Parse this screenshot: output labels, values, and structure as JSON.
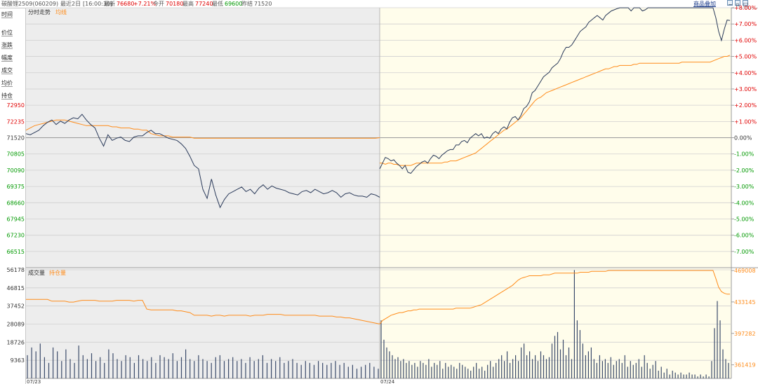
{
  "header": {
    "instrument": "碳酸锂2509(060209)",
    "period": "最近2日",
    "time": "[16:00:30]",
    "last_label": "最新",
    "last_value": "76680",
    "change_pct": "+7.21%",
    "open_label": "今开",
    "open_value": "70180",
    "high_label": "最高",
    "high_value": "77240",
    "low_label": "最低",
    "low_value": "69600",
    "prev_label": "昨结",
    "prev_value": "71520",
    "add_product": "商品叠加"
  },
  "nav": {
    "items": [
      "时间",
      "价位",
      "涨跌",
      "幅度",
      "成交",
      "均价",
      "持仓"
    ]
  },
  "price_panel": {
    "title": "分时走势",
    "legend_avg": "均线",
    "left_ticks": [
      "72950",
      "72235",
      "71520",
      "70805",
      "70090",
      "69375",
      "68660",
      "67945",
      "67230",
      "66515"
    ],
    "right_ticks": [
      "+8.00%",
      "+7.00%",
      "+6.00%",
      "+5.00%",
      "+4.00%",
      "+3.00%",
      "+2.00%",
      "+1.00%",
      "0.00%",
      "-1.00%",
      "-2.00%",
      "-3.00%",
      "-4.00%",
      "-5.00%",
      "-6.00%",
      "-7.00%"
    ]
  },
  "volume_panel": {
    "title": "成交量",
    "legend_oi": "持仓量",
    "left_ticks": [
      "56178",
      "46815",
      "37452",
      "28089",
      "18726",
      "9363"
    ],
    "right_ticks": [
      "469008",
      "433145",
      "397282",
      "361419"
    ]
  },
  "x_labels": [
    "07/23",
    "07/24"
  ],
  "colors": {
    "price_line": "#2a3a5a",
    "avg_line": "#ff8c1a",
    "volume_bar": "#3a4a6a",
    "oi_line": "#ff8c1a",
    "up": "#e00000",
    "down": "#009900",
    "day1_bg": "#ededed",
    "day2_bg": "#fffdeb"
  },
  "chart_data": {
    "type": "line",
    "price_scale": {
      "prev_settle": 71520,
      "ylim": [
        65800,
        77242
      ]
    },
    "day1": {
      "price": [
        71700,
        71650,
        71750,
        71850,
        72050,
        72200,
        72300,
        72100,
        72250,
        72150,
        72300,
        72400,
        72350,
        72550,
        72300,
        72100,
        71950,
        71500,
        71150,
        71650,
        71400,
        71500,
        71550,
        71400,
        71350,
        71550,
        71600,
        71600,
        71750,
        71850,
        71700,
        71700,
        71600,
        71500,
        71450,
        71400,
        71250,
        71050,
        70700,
        70300,
        70150,
        69250,
        68850,
        69700,
        69000,
        68450,
        68800,
        69050,
        69150,
        69250,
        69350,
        69150,
        69250,
        69050,
        69300,
        69450,
        69250,
        69400,
        69300,
        69250,
        69200,
        69100,
        69050,
        69000,
        69150,
        69200,
        69100,
        69250,
        69150,
        69050,
        69100,
        69200,
        69100,
        68900,
        69050,
        69100,
        69000,
        68950,
        68950,
        68900,
        69050,
        69000,
        68900
      ],
      "avg": [
        71850,
        71950,
        72050,
        72100,
        72150,
        72200,
        72250,
        72300,
        72300,
        72300,
        72250,
        72200,
        72150,
        72100,
        72050,
        72050,
        72050,
        72050,
        72050,
        72050,
        72000,
        72000,
        71950,
        71950,
        71950,
        71900,
        71900,
        71850,
        71850,
        71700,
        71650,
        71600,
        71600,
        71600,
        71550,
        71550,
        71550,
        71550,
        71550,
        71500,
        71500,
        71500,
        71500,
        71500,
        71500,
        71500,
        71500,
        71500,
        71500,
        71500,
        71500,
        71500,
        71500,
        71500,
        71500,
        71500,
        71500,
        71500,
        71500,
        71500,
        71500,
        71500,
        71500,
        71500,
        71500,
        71500,
        71500,
        71500,
        71500,
        71500,
        71500,
        71500,
        71500,
        71500,
        71500,
        71500,
        71500,
        71500,
        71500,
        71500,
        71500,
        71500,
        71520
      ],
      "volume": [
        12000,
        16000,
        14000,
        18000,
        11000,
        8000,
        16000,
        14000,
        9000,
        15000,
        10000,
        8000,
        17000,
        12000,
        10000,
        13000,
        9000,
        11000,
        8000,
        15000,
        13000,
        10000,
        9000,
        12000,
        11000,
        8000,
        12000,
        10000,
        9000,
        11000,
        8000,
        12000,
        11000,
        10000,
        13000,
        9000,
        11000,
        15000,
        10000,
        9000,
        12000,
        10000,
        9000,
        8000,
        11000,
        12000,
        9000,
        10000,
        11000,
        9000,
        10000,
        8000,
        11000,
        9000,
        10000,
        12000,
        8000,
        10000,
        9000,
        11000,
        8000,
        9000,
        10000,
        8000,
        7000,
        9000,
        8000,
        7000,
        9000,
        8000,
        7000,
        8000,
        9000,
        7000,
        8000,
        6000,
        7000,
        5000,
        6000,
        7000,
        8000,
        6000,
        5000
      ],
      "open_interest": [
        436000,
        436000,
        436000,
        436000,
        436000,
        436000,
        434000,
        434000,
        434000,
        434000,
        433000,
        433000,
        434000,
        435000,
        435000,
        435000,
        435000,
        434000,
        434000,
        434000,
        434000,
        435000,
        435000,
        435000,
        435000,
        434000,
        435000,
        435000,
        425000,
        424000,
        424000,
        424000,
        424000,
        424000,
        424000,
        423000,
        423000,
        422000,
        421000,
        418000,
        418000,
        418000,
        418000,
        417000,
        418000,
        418000,
        417000,
        418000,
        418000,
        418000,
        418000,
        418000,
        417000,
        418000,
        418000,
        418000,
        419000,
        419000,
        419000,
        419000,
        418000,
        418000,
        418000,
        418000,
        418000,
        418000,
        418000,
        418000,
        417000,
        417000,
        417000,
        417000,
        416000,
        416000,
        415000,
        415000,
        414000,
        413000,
        412000,
        411000,
        410000,
        409000,
        408000
      ]
    },
    "day2": {
      "price": [
        70150,
        70400,
        70650,
        70600,
        70500,
        70550,
        70400,
        70300,
        70150,
        70300,
        70000,
        69950,
        70100,
        70250,
        70350,
        70450,
        70500,
        70400,
        70600,
        70750,
        70700,
        70600,
        70750,
        70850,
        70950,
        71000,
        71000,
        71200,
        71200,
        71350,
        71400,
        71300,
        71500,
        71600,
        71700,
        71600,
        71700,
        71500,
        71550,
        71500,
        71700,
        71800,
        71700,
        71900,
        72000,
        71900,
        72200,
        72400,
        72450,
        72300,
        72500,
        72800,
        72900,
        73100,
        73500,
        73600,
        73800,
        74000,
        74200,
        74300,
        74400,
        74600,
        74700,
        74800,
        75000,
        75300,
        75500,
        75500,
        75600,
        75800,
        76000,
        76200,
        76300,
        76400,
        76600,
        76700,
        76800,
        76900,
        76800,
        76700,
        76900,
        77000,
        77100,
        77150,
        77200,
        77240,
        77240,
        77240,
        77240,
        77100,
        77240,
        77240,
        77240,
        77100,
        77150,
        77240,
        77240,
        77240,
        77240,
        77240,
        77240,
        77240,
        77240,
        77240,
        77240,
        77240,
        77240,
        77240,
        77240,
        77240,
        77240,
        77240,
        77240,
        77240,
        77240,
        77240,
        77240,
        77240,
        77240,
        76800,
        76200,
        75800,
        76300,
        76700,
        76680
      ],
      "avg": [
        70400,
        70400,
        70350,
        70400,
        70400,
        70350,
        70350,
        70300,
        70300,
        70300,
        70300,
        70300,
        70350,
        70400,
        70400,
        70400,
        70400,
        70400,
        70400,
        70400,
        70400,
        70400,
        70400,
        70450,
        70450,
        70500,
        70500,
        70500,
        70550,
        70600,
        70650,
        70700,
        70750,
        70800,
        70850,
        70950,
        71050,
        71150,
        71250,
        71350,
        71450,
        71550,
        71650,
        71750,
        71850,
        71900,
        72000,
        72100,
        72200,
        72300,
        72400,
        72550,
        72700,
        72850,
        73000,
        73150,
        73250,
        73300,
        73400,
        73500,
        73550,
        73600,
        73650,
        73700,
        73750,
        73800,
        73850,
        73900,
        73950,
        74000,
        74050,
        74100,
        74150,
        74200,
        74250,
        74300,
        74350,
        74400,
        74450,
        74500,
        74550,
        74550,
        74600,
        74650,
        74650,
        74700,
        74700,
        74700,
        74700,
        74700,
        74750,
        74750,
        74800,
        74800,
        74800,
        74800,
        74800,
        74800,
        74800,
        74800,
        74800,
        74800,
        74800,
        74800,
        74800,
        74800,
        74800,
        74850,
        74850,
        74850,
        74850,
        74850,
        74850,
        74850,
        74850,
        74850,
        74850,
        74850,
        74900,
        74950,
        75000,
        75050,
        75100,
        75100,
        75150
      ],
      "volume": [
        30000,
        20000,
        16000,
        14000,
        12000,
        10000,
        11000,
        9000,
        10000,
        8000,
        9000,
        7000,
        8000,
        6000,
        9000,
        8000,
        7000,
        10000,
        6000,
        8000,
        7000,
        9000,
        5000,
        8000,
        6000,
        7000,
        6000,
        5000,
        8000,
        7000,
        6000,
        5000,
        4000,
        6000,
        8000,
        5000,
        6000,
        4000,
        7000,
        9000,
        6000,
        8000,
        10000,
        12000,
        9000,
        14000,
        8000,
        10000,
        12000,
        9000,
        16000,
        18000,
        12000,
        14000,
        10000,
        12000,
        9000,
        14000,
        12000,
        10000,
        11000,
        18000,
        22000,
        24000,
        15000,
        20000,
        12000,
        16000,
        10000,
        56000,
        30000,
        25000,
        18000,
        12000,
        14000,
        16000,
        10000,
        8000,
        12000,
        9000,
        10000,
        8000,
        11000,
        7000,
        9000,
        10000,
        8000,
        12000,
        6000,
        9000,
        7000,
        8000,
        10000,
        6000,
        12000,
        8000,
        5000,
        7000,
        9000,
        4000,
        6000,
        3000,
        5000,
        2000,
        4000,
        3000,
        2000,
        3000,
        2000,
        2000,
        3000,
        2000,
        2000,
        1000,
        2000,
        1000,
        2000,
        1000,
        9000,
        26000,
        40000,
        30000,
        15000,
        10000,
        8000
      ],
      "open_interest": [
        408000,
        412000,
        414000,
        416000,
        418000,
        419000,
        420000,
        421000,
        421000,
        422000,
        423000,
        423000,
        424000,
        424000,
        425000,
        425000,
        425000,
        425000,
        425000,
        425000,
        425000,
        425000,
        425000,
        425000,
        425000,
        425000,
        425000,
        426000,
        426000,
        426000,
        426000,
        426000,
        426000,
        427000,
        428000,
        429000,
        430000,
        432000,
        434000,
        436000,
        438000,
        440000,
        442000,
        444000,
        446000,
        448000,
        450000,
        452000,
        455000,
        458000,
        460000,
        461000,
        462000,
        463000,
        463000,
        463000,
        463000,
        463000,
        464000,
        464000,
        464000,
        465000,
        466000,
        466000,
        466000,
        466000,
        466000,
        466000,
        466000,
        466000,
        466000,
        467000,
        467000,
        467000,
        467000,
        468000,
        468000,
        468000,
        468000,
        468000,
        468000,
        469008,
        469008,
        469008,
        469008,
        469008,
        469008,
        469008,
        469008,
        469008,
        469008,
        469008,
        469008,
        469008,
        469008,
        469008,
        469008,
        469008,
        469008,
        469008,
        469008,
        469008,
        469008,
        469008,
        469008,
        469008,
        469008,
        469008,
        469008,
        469008,
        469008,
        469008,
        469008,
        469008,
        469008,
        469008,
        469008,
        469008,
        469008,
        460000,
        450000,
        445000,
        443000,
        442000,
        442000
      ]
    },
    "volume_ylim": [
      0,
      56178
    ],
    "oi_ylim": [
      346000,
      469008
    ]
  }
}
